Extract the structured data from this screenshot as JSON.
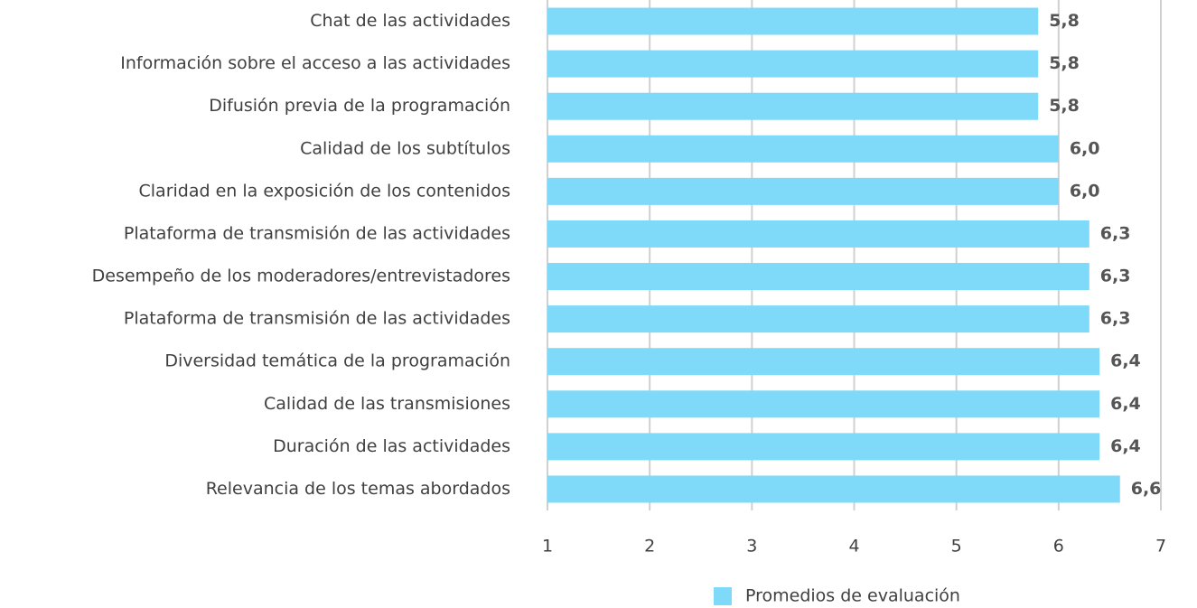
{
  "chart_data": {
    "type": "bar",
    "orientation": "horizontal",
    "categories": [
      "Chat de las actividades",
      "Información sobre el acceso a las actividades",
      "Difusión previa de la programación",
      "Calidad de los subtítulos",
      "Claridad en la exposición de los contenidos",
      "Plataforma de transmisión de las actividades",
      "Desempeño de los moderadores/entrevistadores",
      "Plataforma de transmisión de las actividades",
      "Diversidad temática de la programación",
      "Calidad de las transmisiones",
      "Duración de las actividades",
      "Relevancia de los temas abordados"
    ],
    "series": [
      {
        "name": "Promedios de evaluación",
        "color": "#7fd9f9",
        "values": [
          5.8,
          5.8,
          5.8,
          6.0,
          6.0,
          6.3,
          6.3,
          6.3,
          6.4,
          6.4,
          6.4,
          6.6
        ],
        "value_labels": [
          "5,8",
          "5,8",
          "5,8",
          "6,0",
          "6,0",
          "6,3",
          "6,3",
          "6,3",
          "6,4",
          "6,4",
          "6,4",
          "6,6"
        ]
      }
    ],
    "xlim": [
      1,
      7
    ],
    "xticks": [
      1,
      2,
      3,
      4,
      5,
      6,
      7
    ],
    "grid": true,
    "legend": "bottom"
  }
}
